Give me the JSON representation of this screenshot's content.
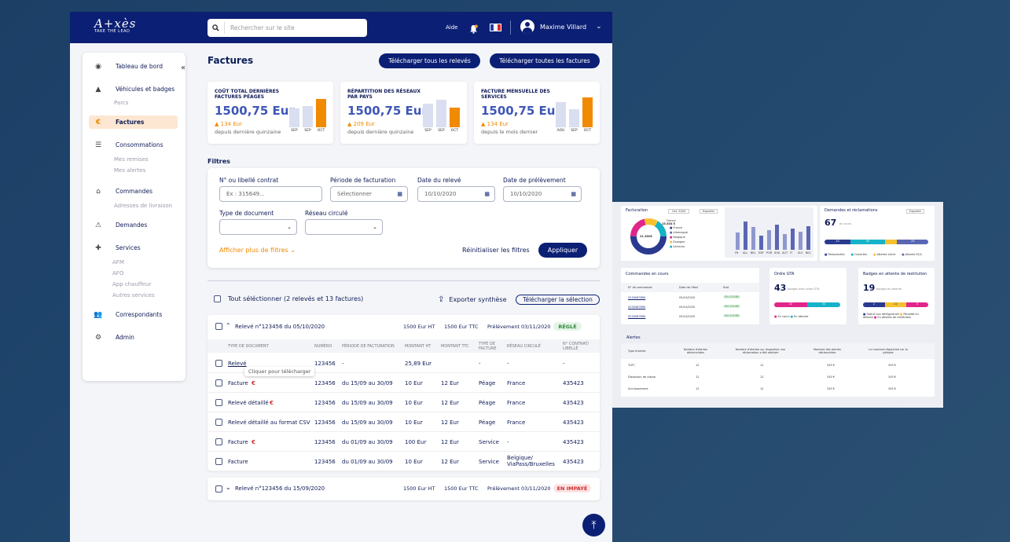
{
  "colors": {
    "primary": "#0b1f74",
    "accent": "#f08a00",
    "bar_light": "#d9def0",
    "paid_bg": "#e3f4e6",
    "paid_fg": "#2f8a3e",
    "unpaid_bg": "#fde3e3",
    "unpaid_fg": "#d03030"
  },
  "header": {
    "logo_text": "A+xès",
    "logo_tagline": "TAKE THE LEAD",
    "search_placeholder": "Rechercher sur le site",
    "help": "Aide",
    "user_name": "Maxime Villard"
  },
  "sidebar": {
    "items": [
      {
        "label": "Tableau de bord",
        "icon": "dashboard-icon"
      },
      {
        "label": "Véhicules et badges",
        "icon": "car-icon"
      },
      {
        "label": "Factures",
        "icon": "euro-icon"
      },
      {
        "label": "Consommations",
        "icon": "list-icon"
      },
      {
        "label": "Commandes",
        "icon": "basket-icon"
      },
      {
        "label": "Demandes",
        "icon": "warning-icon"
      },
      {
        "label": "Services",
        "icon": "puzzle-icon"
      },
      {
        "label": "Correspondants",
        "icon": "users-icon"
      },
      {
        "label": "Admin",
        "icon": "gear-icon"
      }
    ],
    "subitems": {
      "vehicules": [
        "Parcs"
      ],
      "consommations": [
        "Mes remises",
        "Mes alertes"
      ],
      "commandes": [
        "Adresses de livraison"
      ],
      "services": [
        "AFM",
        "AFO",
        "App chauffeur",
        "Autres services"
      ]
    }
  },
  "page": {
    "title": "Factures",
    "btn_releves": "Télécharger tous les relevés",
    "btn_factures": "Télécharger toutes les factures"
  },
  "cards": [
    {
      "title": "Coût total dernières factures péages",
      "value": "1500,75 Eur",
      "delta": "134 Eur",
      "sub": "depuis dernière quinzaine",
      "bars": [
        {
          "label": "SEP",
          "value": 0.62
        },
        {
          "label": "SEP",
          "value": 0.72
        },
        {
          "label": "OCT",
          "value": 0.95
        }
      ]
    },
    {
      "title": "Répartition des réseaux par pays",
      "value": "1500,75 Eur",
      "delta": "209 Eur",
      "sub": "depuis dernière quinzaine",
      "bars": [
        {
          "label": "SEP",
          "value": 0.78
        },
        {
          "label": "SEP",
          "value": 0.92
        },
        {
          "label": "OCT",
          "value": 0.66
        }
      ]
    },
    {
      "title": "Facture mensuelle des services",
      "value": "1500,75 Eur",
      "delta": "134 Eur",
      "sub": "depuis le mois dernier",
      "bars": [
        {
          "label": "AOU",
          "value": 0.85
        },
        {
          "label": "SEP",
          "value": 0.6
        },
        {
          "label": "OCT",
          "value": 1.0
        }
      ]
    }
  ],
  "filters": {
    "title": "Filtres",
    "contract_label": "N° ou libellé contrat",
    "contract_placeholder": "Ex : 315649...",
    "period_label": "Période de facturation",
    "period_value": "Sélectionner",
    "releve_label": "Date du relevé",
    "releve_value": "10/10/2020",
    "prelev_label": "Date de prélèvement",
    "prelev_value": "10/10/2020",
    "doctype_label": "Type de document",
    "network_label": "Réseau circulé",
    "more": "Afficher plus de filtres",
    "reset": "Réinitialiser les filtres",
    "apply": "Appliquer"
  },
  "list": {
    "select_all": "Tout séléctionner (2 relevés et 13 factures)",
    "export": "Exporter synthèse",
    "download_selection": "Télécharger la sélection"
  },
  "releve1": {
    "title": "Relevé n°123456 du 05/10/2020",
    "ht": "1500 Eur HT",
    "ttc": "1500 Eur TTC",
    "prelev": "Prélèvement 03/11/2020",
    "status": "RÉGLÉ",
    "columns": [
      "Type de document",
      "Numéro",
      "Période de facturation",
      "Montant HT",
      "Montant TTC",
      "Type de facture",
      "Réseau circulé",
      "N° contrat/ libellé"
    ],
    "rows": [
      {
        "type": "Relevé",
        "num": "123456",
        "period": "-",
        "ht": "25,89 Eur",
        "ttc": "",
        "ftype": "-",
        "network": "-",
        "contract": "-"
      },
      {
        "type": "Facture",
        "num": "123456",
        "period": "du 15/09 au 30/09",
        "ht": "10 Eur",
        "ttc": "12 Eur",
        "ftype": "Péage",
        "network": "France",
        "contract": "435423"
      },
      {
        "type": "Relevé détaillé",
        "num": "123456",
        "period": "du 15/09 au 30/09",
        "ht": "10 Eur",
        "ttc": "12 Eur",
        "ftype": "Péage",
        "network": "France",
        "contract": "435423"
      },
      {
        "type": "Relevé détaillé au format CSV",
        "num": "123456",
        "period": "du 15/09 au 30/09",
        "ht": "10 Eur",
        "ttc": "12 Eur",
        "ftype": "Péage",
        "network": "France",
        "contract": "435423"
      },
      {
        "type": "Facture",
        "num": "123456",
        "period": "du 01/09 au 30/09",
        "ht": "100 Eur",
        "ttc": "12 Eur",
        "ftype": "Service",
        "network": "-",
        "contract": "435423"
      },
      {
        "type": "Facture",
        "num": "123456",
        "period": "du 01/09 au 30/09",
        "ht": "10 Eur",
        "ttc": "12 Eur",
        "ftype": "Service",
        "network": "Belgique/ ViaPass/Bruxelles",
        "contract": "435423"
      }
    ],
    "tooltip": "Cliquer pour télécharger"
  },
  "releve2": {
    "title": "Relevé n°123456 du 15/09/2020",
    "ht": "1500 Eur HT",
    "ttc": "1500 Eur TTC",
    "prelev": "Prélèvement 03/11/2020",
    "status": "EN IMPAYÉ"
  },
  "dashboard": {
    "facturation": {
      "title": "Facturation",
      "period": "Oct. 2020",
      "export": "Exporter",
      "total": "21.500€",
      "france": "France",
      "france_val": "15.834 €",
      "legend": [
        "France",
        "Allemagne",
        "Belgique",
        "Espagne",
        "Services"
      ],
      "countries": [
        "FR",
        "ALL",
        "BEL",
        "ESP",
        "POR",
        "SOA",
        "AUT",
        "IT",
        "SUI",
        "BEL"
      ],
      "bar_values": [
        0.55,
        0.9,
        0.72,
        0.45,
        0.62,
        0.8,
        0.5,
        0.68,
        0.58,
        0.75
      ]
    },
    "demandes": {
      "title": "Demandes et réclamations",
      "export": "Exporter",
      "count": "67",
      "count_label": "en cours",
      "segments": [
        {
          "label": "10",
          "w": 0.25
        },
        {
          "label": "30",
          "w": 0.33
        },
        {
          "label": "",
          "w": 0.12
        },
        {
          "label": "25",
          "w": 0.3
        }
      ],
      "legend": [
        "Remplacées",
        "Ouvertes",
        "Attente client",
        "Attente ECA"
      ]
    },
    "commandes": {
      "title": "Commandes en cours",
      "cols": [
        "N° de commande",
        "Date de l'état",
        "Etat"
      ],
      "rows": [
        {
          "num": "5234567890",
          "date": "05/10/2020",
          "state": "EN COURS"
        },
        {
          "num": "5234567890",
          "date": "05/10/2020",
          "state": "EN COURS"
        },
        {
          "num": "5234567890",
          "date": "05/10/2020",
          "state": "EN COURS"
        }
      ]
    },
    "ordre_gta": {
      "title": "Ordre GTA",
      "count": "43",
      "label": "badges avec ordre GTA",
      "seg": [
        "10",
        "33"
      ],
      "legend": [
        "En cours",
        "En attente"
      ]
    },
    "badges": {
      "title": "Badges en attente de restitution",
      "count": "19",
      "label": "badges en attente",
      "seg": [
        "2",
        "12",
        "5"
      ],
      "legend": [
        "Statut non dérégularisé",
        "Pénalité en attente",
        "En attente de restitution"
      ]
    },
    "alertes": {
      "title": "Alertes",
      "cols": [
        "Type d'alerte",
        "Nombre d'alertes déclenchées",
        "Nombre d'alertes sur lesquelles une réclamation a été réalisée",
        "Montant des alertes déclenchées",
        "Le montant régularisé sur la période"
      ],
      "rows": [
        {
          "type": "TLPC",
          "a": "12",
          "b": "12",
          "c": "345 €",
          "d": "345 €"
        },
        {
          "type": "Distorsion de classe",
          "a": "12",
          "b": "12",
          "c": "345 €",
          "d": "345 €"
        },
        {
          "type": "Surclassement",
          "a": "12",
          "b": "12",
          "c": "345 €",
          "d": "345 €"
        }
      ]
    }
  }
}
